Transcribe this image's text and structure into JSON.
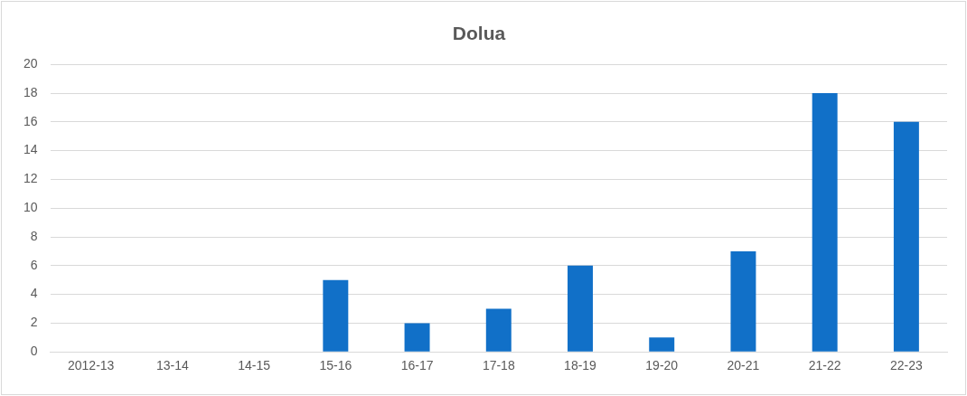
{
  "chart_data": {
    "type": "bar",
    "title": "Dolua",
    "categories": [
      "2012-13",
      "13-14",
      "14-15",
      "15-16",
      "16-17",
      "17-18",
      "18-19",
      "19-20",
      "20-21",
      "21-22",
      "22-23"
    ],
    "values": [
      0,
      0,
      0,
      5,
      2,
      3,
      6,
      1,
      7,
      18,
      16
    ],
    "color": "#1170c8",
    "ylim": [
      0,
      20
    ],
    "yticks": [
      0,
      2,
      4,
      6,
      8,
      10,
      12,
      14,
      16,
      18,
      20
    ],
    "grid": "y"
  }
}
